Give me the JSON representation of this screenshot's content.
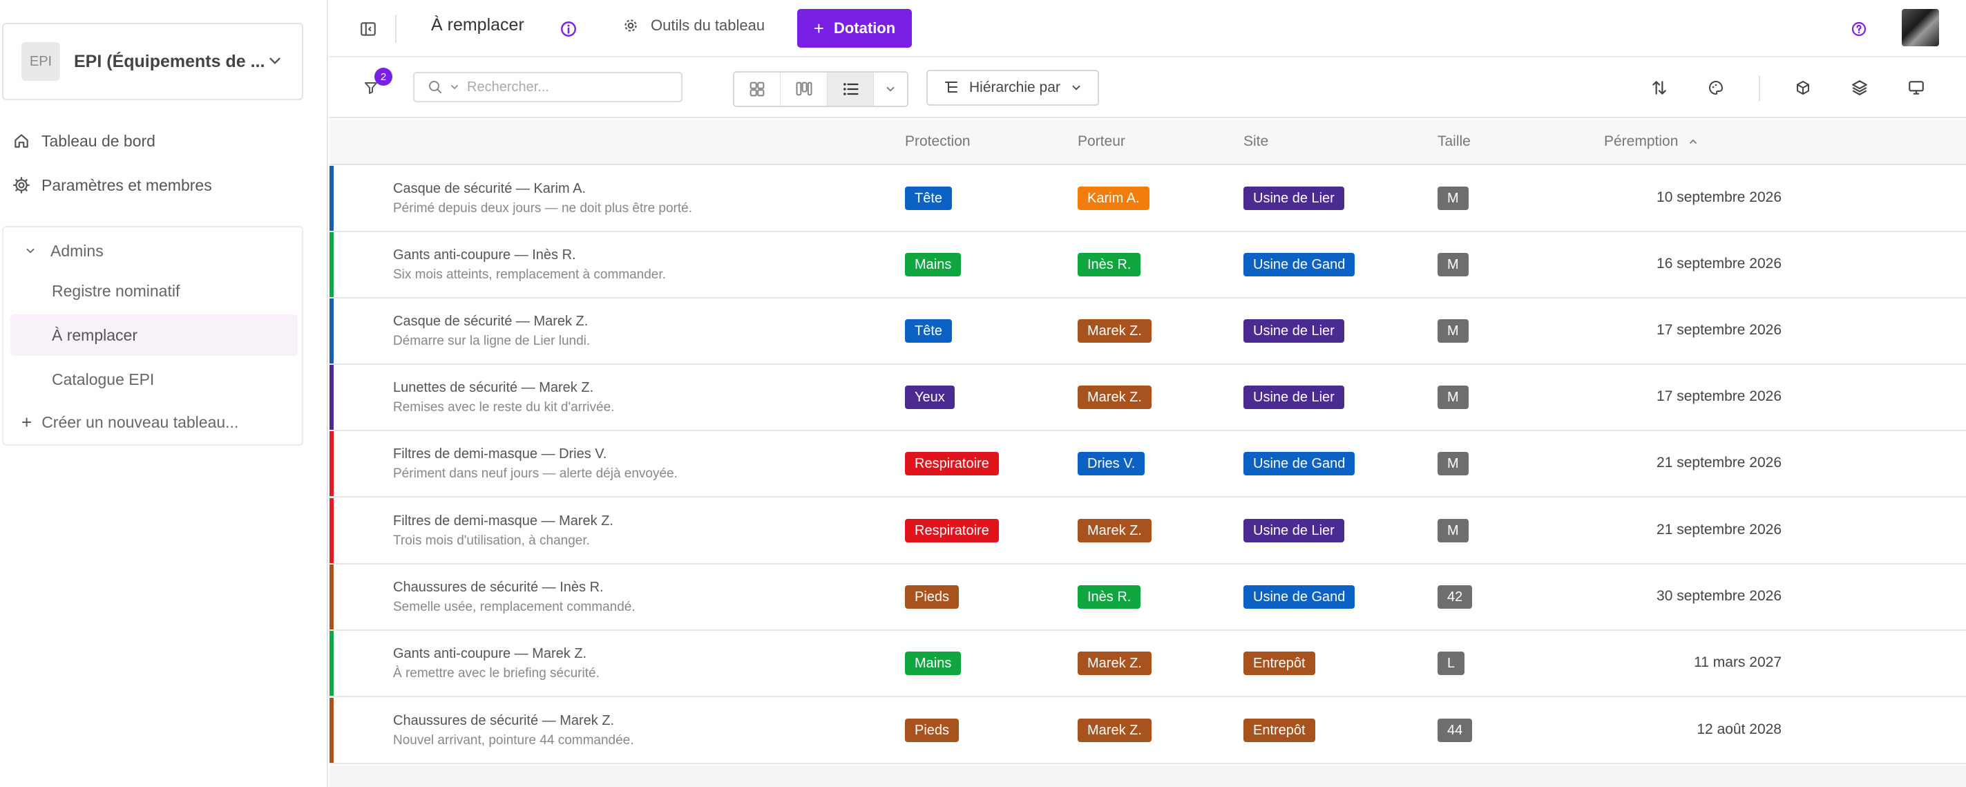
{
  "sidebar": {
    "workspace": {
      "logo": "EPI",
      "name": "EPI (Équipements de ..."
    },
    "nav": [
      {
        "label": "Tableau de bord",
        "icon": "home-icon"
      },
      {
        "label": "Paramètres et membres",
        "icon": "gear-icon"
      }
    ],
    "group": {
      "label": "Admins",
      "items": [
        {
          "label": "Registre nominatif",
          "active": false
        },
        {
          "label": "À remplacer",
          "active": true
        },
        {
          "label": "Catalogue EPI",
          "active": false
        }
      ],
      "create_label": "Créer un nouveau tableau..."
    }
  },
  "topbar": {
    "view_title": "À remplacer",
    "tools_label": "Outils du tableau",
    "primary_button": "Dotation"
  },
  "toolbar": {
    "filter_count": "2",
    "search_placeholder": "Rechercher...",
    "hierarchy_label": "Hiérarchie par"
  },
  "table": {
    "columns": [
      "Protection",
      "Porteur",
      "Site",
      "Taille",
      "Péremption"
    ],
    "sort_column": "Péremption",
    "rows": [
      {
        "title": "Casque de sécurité — Karim A.",
        "subtitle": "Périmé depuis deux jours — ne doit plus être porté.",
        "protection": "Tête",
        "porteur": "Karim A.",
        "site": "Usine de Lier",
        "taille": "M",
        "date": "10 septembre 2026",
        "bar": "#1a5fb4",
        "protection_color": "#0b62c4",
        "porteur_color": "#f07d0c",
        "site_color": "#4b2a91"
      },
      {
        "title": "Gants anti-coupure — Inès R.",
        "subtitle": "Six mois atteints, remplacement à commander.",
        "protection": "Mains",
        "porteur": "Inès R.",
        "site": "Usine de Gand",
        "taille": "M",
        "date": "16 septembre 2026",
        "bar": "#12a84a",
        "protection_color": "#0fa53f",
        "porteur_color": "#0fa53f",
        "site_color": "#0b62c4"
      },
      {
        "title": "Casque de sécurité — Marek Z.",
        "subtitle": "Démarre sur la ligne de Lier lundi.",
        "protection": "Tête",
        "porteur": "Marek Z.",
        "site": "Usine de Lier",
        "taille": "M",
        "date": "17 septembre 2026",
        "bar": "#1a5fb4",
        "protection_color": "#0b62c4",
        "porteur_color": "#a8531d",
        "site_color": "#4b2a91"
      },
      {
        "title": "Lunettes de sécurité — Marek Z.",
        "subtitle": "Remises avec le reste du kit d'arrivée.",
        "protection": "Yeux",
        "porteur": "Marek Z.",
        "site": "Usine de Lier",
        "taille": "M",
        "date": "17 septembre 2026",
        "bar": "#4b2a91",
        "protection_color": "#4b2a91",
        "porteur_color": "#a8531d",
        "site_color": "#4b2a91"
      },
      {
        "title": "Filtres de demi-masque — Dries V.",
        "subtitle": "Périment dans neuf jours — alerte déjà envoyée.",
        "protection": "Respiratoire",
        "porteur": "Dries V.",
        "site": "Usine de Gand",
        "taille": "M",
        "date": "21 septembre 2026",
        "bar": "#e01b24",
        "protection_color": "#e0141c",
        "porteur_color": "#0b62c4",
        "site_color": "#0b62c4"
      },
      {
        "title": "Filtres de demi-masque — Marek Z.",
        "subtitle": "Trois mois d'utilisation, à changer.",
        "protection": "Respiratoire",
        "porteur": "Marek Z.",
        "site": "Usine de Lier",
        "taille": "M",
        "date": "21 septembre 2026",
        "bar": "#e01b24",
        "protection_color": "#e0141c",
        "porteur_color": "#a8531d",
        "site_color": "#4b2a91"
      },
      {
        "title": "Chaussures de sécurité — Inès R.",
        "subtitle": "Semelle usée, remplacement commandé.",
        "protection": "Pieds",
        "porteur": "Inès R.",
        "site": "Usine de Gand",
        "taille": "42",
        "date": "30 septembre 2026",
        "bar": "#a8531d",
        "protection_color": "#a8531d",
        "porteur_color": "#0fa53f",
        "site_color": "#0b62c4"
      },
      {
        "title": "Gants anti-coupure — Marek Z.",
        "subtitle": "À remettre avec le briefing sécurité.",
        "protection": "Mains",
        "porteur": "Marek Z.",
        "site": "Entrepôt",
        "taille": "L",
        "date": "11 mars 2027",
        "bar": "#12a84a",
        "protection_color": "#0fa53f",
        "porteur_color": "#a8531d",
        "site_color": "#a8531d"
      },
      {
        "title": "Chaussures de sécurité — Marek Z.",
        "subtitle": "Nouvel arrivant, pointure 44 commandée.",
        "protection": "Pieds",
        "porteur": "Marek Z.",
        "site": "Entrepôt",
        "taille": "44",
        "date": "12 août 2028",
        "bar": "#a8531d",
        "protection_color": "#a8531d",
        "porteur_color": "#a8531d",
        "site_color": "#a8531d"
      }
    ]
  },
  "colors": {
    "accent": "#7a1fe6",
    "active_bg": "#f8f1fa"
  }
}
